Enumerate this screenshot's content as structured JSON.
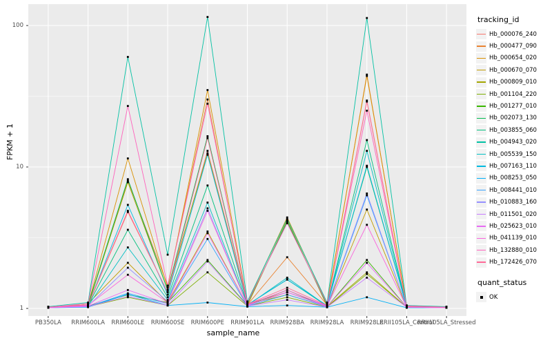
{
  "chart_data": {
    "type": "line",
    "title": "",
    "xlabel": "sample_name",
    "ylabel": "FPKM + 1",
    "scale": "log10",
    "ylim": [
      1,
      130
    ],
    "yticks": [
      1,
      10,
      100
    ],
    "yticks_minor": [
      3.1623,
      31.623
    ],
    "grid": "on",
    "panel_bg": "#ebebeb",
    "grid_color": "#ffffff",
    "point_color": "#000000",
    "legend_position": "right",
    "legend_title": "tracking_id",
    "legend2_title": "quant_status",
    "legend2_entries": [
      {
        "label": "OK",
        "symbol": "black-square"
      }
    ],
    "categories": [
      "PB350LA",
      "RRIM600LA",
      "RRIM600LE",
      "RRIM600SE",
      "RRIM600PE",
      "RRIM901LA",
      "RRIM928BA",
      "RRIM928LA",
      "RRIM928LE",
      "RRII105LA_Control",
      "RRII105LA_Stressed"
    ],
    "series": [
      {
        "name": "Hb_000076_240",
        "color": "#F8766D",
        "values": [
          1.02,
          1.05,
          4.8,
          1.3,
          13.0,
          1.08,
          1.3,
          1.05,
          29.0,
          1.03,
          1.02
        ]
      },
      {
        "name": "Hb_000477_090",
        "color": "#EA8331",
        "values": [
          1.01,
          1.04,
          8.0,
          1.45,
          30.0,
          1.06,
          2.3,
          1.06,
          45.0,
          1.04,
          1.01
        ]
      },
      {
        "name": "Hb_000654_020",
        "color": "#D89000",
        "values": [
          1.02,
          1.06,
          11.5,
          1.4,
          35.0,
          1.1,
          4.4,
          1.08,
          44.0,
          1.05,
          1.02
        ]
      },
      {
        "name": "Hb_000670_070",
        "color": "#C09B00",
        "values": [
          1.01,
          1.08,
          2.1,
          1.1,
          3.5,
          1.05,
          4.2,
          1.04,
          5.0,
          1.02,
          1.01
        ]
      },
      {
        "name": "Hb_000809_010",
        "color": "#A3A500",
        "values": [
          1.02,
          1.05,
          7.8,
          1.35,
          12.5,
          1.07,
          1.25,
          1.03,
          1.8,
          1.02,
          1.02
        ]
      },
      {
        "name": "Hb_001104_220",
        "color": "#7CAE00",
        "values": [
          1.01,
          1.03,
          1.2,
          1.05,
          1.8,
          1.04,
          1.2,
          1.02,
          1.75,
          1.02,
          1.01
        ]
      },
      {
        "name": "Hb_001277_010",
        "color": "#39B600",
        "values": [
          1.01,
          1.04,
          1.25,
          1.1,
          2.2,
          1.05,
          1.35,
          1.03,
          2.2,
          1.02,
          1.01
        ]
      },
      {
        "name": "Hb_002073_130",
        "color": "#00BB4E",
        "values": [
          1.02,
          1.06,
          8.2,
          1.35,
          16.5,
          1.08,
          4.1,
          1.06,
          10.0,
          1.03,
          1.02
        ]
      },
      {
        "name": "Hb_003855_060",
        "color": "#00BF7D",
        "values": [
          1.01,
          1.05,
          3.6,
          1.2,
          7.4,
          1.06,
          1.6,
          1.04,
          15.5,
          1.03,
          1.01
        ]
      },
      {
        "name": "Hb_004943_020",
        "color": "#00C1A3",
        "values": [
          1.03,
          1.1,
          60.0,
          2.4,
          115.0,
          1.12,
          4.3,
          1.1,
          113.0,
          1.05,
          1.03
        ]
      },
      {
        "name": "Hb_005539_150",
        "color": "#00BFC4",
        "values": [
          1.01,
          1.04,
          2.7,
          1.15,
          5.6,
          1.05,
          1.65,
          1.04,
          13.0,
          1.02,
          1.01
        ]
      },
      {
        "name": "Hb_007163_110",
        "color": "#00BAE0",
        "values": [
          1.02,
          1.05,
          5.4,
          1.25,
          12.2,
          1.06,
          1.6,
          1.05,
          10.2,
          1.03,
          1.02
        ]
      },
      {
        "name": "Hb_008253_050",
        "color": "#00B0F6",
        "values": [
          1.01,
          1.02,
          1.26,
          1.05,
          1.1,
          1.03,
          1.05,
          1.02,
          1.2,
          1.01,
          1.01
        ]
      },
      {
        "name": "Hb_008441_010",
        "color": "#35A2FF",
        "values": [
          1.01,
          1.03,
          1.28,
          1.08,
          3.1,
          1.04,
          1.25,
          1.03,
          6.3,
          1.02,
          1.01
        ]
      },
      {
        "name": "Hb_010883_160",
        "color": "#9590FF",
        "values": [
          1.01,
          1.04,
          1.94,
          1.12,
          5.1,
          1.05,
          1.3,
          1.04,
          6.5,
          1.02,
          1.01
        ]
      },
      {
        "name": "Hb_011501_020",
        "color": "#C77CFF",
        "values": [
          1.01,
          1.03,
          1.22,
          1.05,
          2.15,
          1.04,
          1.15,
          1.02,
          1.65,
          1.02,
          1.01
        ]
      },
      {
        "name": "Hb_025623_010",
        "color": "#E76BF3",
        "values": [
          1.01,
          1.04,
          1.35,
          1.08,
          3.4,
          1.05,
          1.3,
          1.03,
          2.1,
          1.02,
          1.01
        ]
      },
      {
        "name": "Hb_041139_010",
        "color": "#FA62DB",
        "values": [
          1.02,
          1.05,
          1.73,
          1.1,
          4.9,
          1.06,
          1.35,
          1.04,
          3.9,
          1.02,
          1.02
        ]
      },
      {
        "name": "Hb_132880_010",
        "color": "#FF62BC",
        "values": [
          1.02,
          1.08,
          27.0,
          1.45,
          28.0,
          1.1,
          4.0,
          1.08,
          25.0,
          1.04,
          1.02
        ]
      },
      {
        "name": "Hb_172426_070",
        "color": "#FF6A98",
        "values": [
          1.02,
          1.06,
          4.9,
          1.3,
          16.0,
          1.07,
          1.4,
          1.05,
          29.5,
          1.03,
          1.02
        ]
      }
    ]
  },
  "labels": {
    "x_axis_title": "sample_name",
    "y_axis_title": "FPKM + 1",
    "legend_title": "tracking_id",
    "legend2_title": "quant_status"
  }
}
